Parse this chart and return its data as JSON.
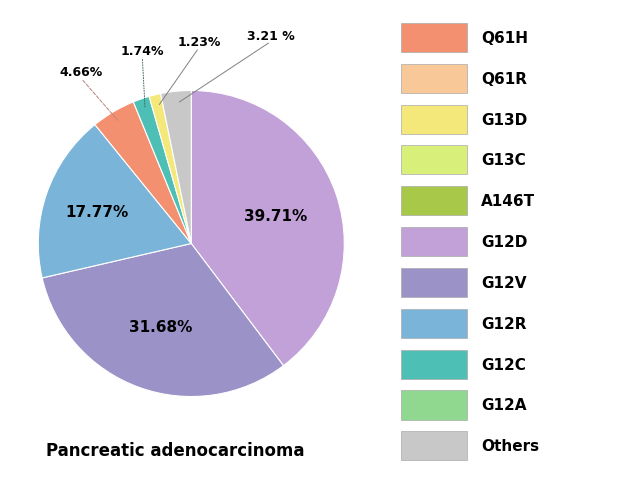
{
  "slice_labels": [
    "G12D",
    "G12V",
    "G12R",
    "Q61H",
    "G12C",
    "G13D",
    "Others"
  ],
  "slice_sizes": [
    39.71,
    31.68,
    17.77,
    4.66,
    1.74,
    1.23,
    3.21
  ],
  "slice_colors": [
    "#c2a0d8",
    "#9b92c8",
    "#7ab4d8",
    "#f29070",
    "#4dbfb5",
    "#f5e87a",
    "#c8c8c8"
  ],
  "legend_labels": [
    "Q61H",
    "Q61R",
    "G13D",
    "G13C",
    "A146T",
    "G12D",
    "G12V",
    "G12R",
    "G12C",
    "G12A",
    "Others"
  ],
  "legend_colors": [
    "#f29070",
    "#f8c898",
    "#f5e87a",
    "#d8f07a",
    "#a8c84a",
    "#c2a0d8",
    "#9b92c8",
    "#7ab4d8",
    "#4dbfb5",
    "#90d890",
    "#c8c8c8"
  ],
  "pct_inside": {
    "G12D": "39.71%",
    "G12V": "31.68%",
    "G12R": "17.77%"
  },
  "pct_outside": {
    "Q61H": "4.66%",
    "G12C": "1.74%",
    "G13D": "1.23%",
    "Others": "3.21 %"
  },
  "subtitle": "Pancreatic adenocarcinoma",
  "background_color": "#ffffff",
  "startangle": 90
}
